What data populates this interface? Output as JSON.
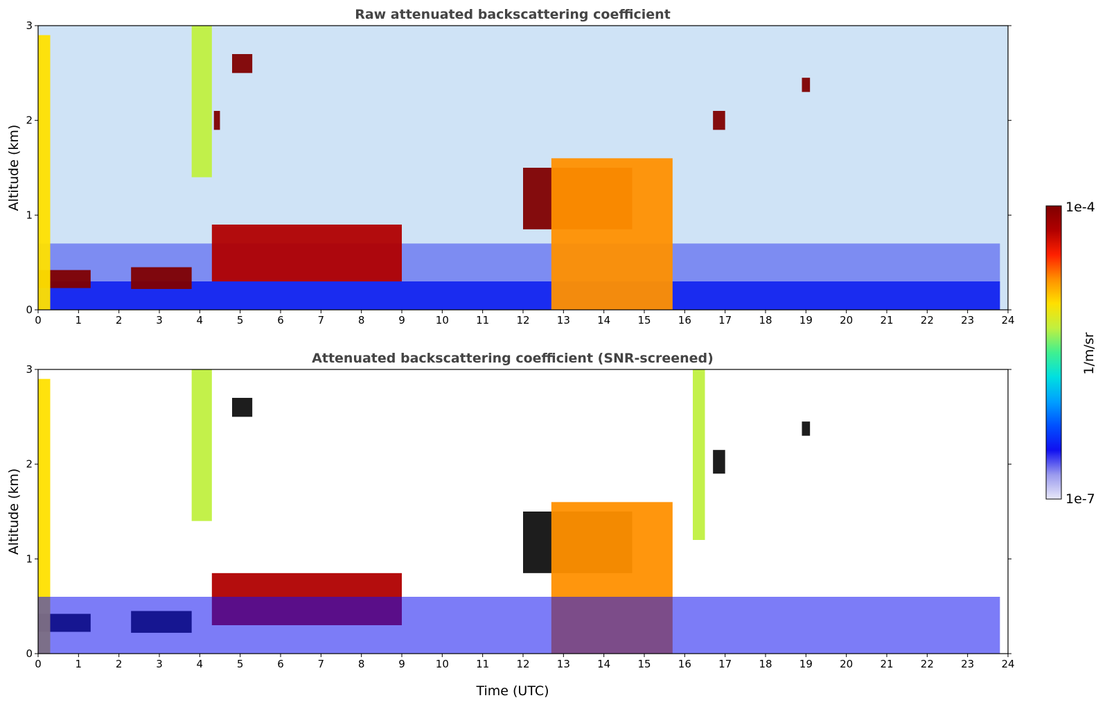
{
  "chart_data": [
    {
      "type": "heatmap",
      "title": "Raw attenuated backscattering coefficient",
      "xlabel": "",
      "ylabel": "Altitude (km)",
      "xlim": [
        0,
        24
      ],
      "ylim": [
        0,
        3
      ],
      "x_ticks": [
        "0",
        "1",
        "2",
        "3",
        "4",
        "5",
        "6",
        "7",
        "8",
        "9",
        "10",
        "11",
        "12",
        "13",
        "14",
        "15",
        "16",
        "17",
        "18",
        "19",
        "20",
        "21",
        "22",
        "23",
        "24"
      ],
      "y_ticks": [
        "0",
        "1",
        "2",
        "3"
      ],
      "grid": false,
      "features": [
        {
          "kind": "boundary_layer_aerosol",
          "t_start": 0.0,
          "t_end": 1.3,
          "alt_bottom": 0.23,
          "alt_top": 0.42,
          "level": 1.0
        },
        {
          "kind": "boundary_layer_aerosol",
          "t_start": 2.3,
          "t_end": 3.8,
          "alt_bottom": 0.22,
          "alt_top": 0.45,
          "level": 1.0
        },
        {
          "kind": "rising_aerosol_layer",
          "t_start": 4.3,
          "t_end": 9.0,
          "alt_bottom": 0.3,
          "alt_top": 0.9,
          "level": 0.95
        },
        {
          "kind": "cloud_base",
          "t_start": 12.0,
          "t_end": 14.7,
          "alt_bottom": 0.85,
          "alt_top": 1.5,
          "level": 1.0
        },
        {
          "kind": "convective_column",
          "t_start": 12.7,
          "t_end": 15.7,
          "alt_bottom": 0.0,
          "alt_top": 1.6,
          "level": 0.72
        },
        {
          "kind": "thin_cloud",
          "t_start": 16.7,
          "t_end": 17.0,
          "alt_bottom": 1.9,
          "alt_top": 2.1,
          "level": 1.0
        },
        {
          "kind": "thin_cloud",
          "t_start": 4.8,
          "t_end": 5.3,
          "alt_bottom": 2.5,
          "alt_top": 2.7,
          "level": 1.0
        },
        {
          "kind": "thin_cloud",
          "t_start": 4.35,
          "t_end": 4.5,
          "alt_bottom": 1.9,
          "alt_top": 2.1,
          "level": 1.0
        },
        {
          "kind": "thin_cloud",
          "t_start": 18.9,
          "t_end": 19.1,
          "alt_bottom": 2.3,
          "alt_top": 2.45,
          "level": 1.0
        },
        {
          "kind": "vertical_plume",
          "t_start": 0.0,
          "t_end": 0.3,
          "alt_bottom": 0.0,
          "alt_top": 2.9,
          "level": 0.65
        },
        {
          "kind": "vertical_plume",
          "t_start": 3.8,
          "t_end": 4.3,
          "alt_bottom": 1.4,
          "alt_top": 3.0,
          "level": 0.6
        }
      ]
    },
    {
      "type": "heatmap",
      "title": "Attenuated backscattering coefficient (SNR-screened)",
      "xlabel": "Time (UTC)",
      "ylabel": "Altitude (km)",
      "xlim": [
        0,
        24
      ],
      "ylim": [
        0,
        3
      ],
      "x_ticks": [
        "0",
        "1",
        "2",
        "3",
        "4",
        "5",
        "6",
        "7",
        "8",
        "9",
        "10",
        "11",
        "12",
        "13",
        "14",
        "15",
        "16",
        "17",
        "18",
        "19",
        "20",
        "21",
        "22",
        "23",
        "24"
      ],
      "y_ticks": [
        "0",
        "1",
        "2",
        "3"
      ],
      "grid": false,
      "features": [
        {
          "kind": "boundary_layer_aerosol",
          "t_start": 0.0,
          "t_end": 1.3,
          "alt_bottom": 0.23,
          "alt_top": 0.42,
          "level": 1.0
        },
        {
          "kind": "boundary_layer_aerosol",
          "t_start": 2.3,
          "t_end": 3.8,
          "alt_bottom": 0.22,
          "alt_top": 0.45,
          "level": 1.0
        },
        {
          "kind": "rising_aerosol_layer",
          "t_start": 4.3,
          "t_end": 9.0,
          "alt_bottom": 0.3,
          "alt_top": 0.85,
          "level": 0.95
        },
        {
          "kind": "cloud_base",
          "t_start": 12.0,
          "t_end": 14.7,
          "alt_bottom": 0.85,
          "alt_top": 1.5,
          "level": 1.0
        },
        {
          "kind": "convective_column",
          "t_start": 12.7,
          "t_end": 15.7,
          "alt_bottom": 0.0,
          "alt_top": 1.6,
          "level": 0.72
        },
        {
          "kind": "thin_cloud",
          "t_start": 16.7,
          "t_end": 17.0,
          "alt_bottom": 1.9,
          "alt_top": 2.15,
          "level": 1.0
        },
        {
          "kind": "thin_cloud",
          "t_start": 4.8,
          "t_end": 5.3,
          "alt_bottom": 2.5,
          "alt_top": 2.7,
          "level": 1.0
        },
        {
          "kind": "thin_cloud",
          "t_start": 18.9,
          "t_end": 19.1,
          "alt_bottom": 2.3,
          "alt_top": 2.45,
          "level": 1.0
        },
        {
          "kind": "vertical_plume",
          "t_start": 0.0,
          "t_end": 0.3,
          "alt_bottom": 0.0,
          "alt_top": 2.9,
          "level": 0.65
        },
        {
          "kind": "vertical_plume",
          "t_start": 3.8,
          "t_end": 4.3,
          "alt_bottom": 1.4,
          "alt_top": 3.0,
          "level": 0.6
        },
        {
          "kind": "screened_background",
          "t_start": 0.0,
          "t_end": 23.8,
          "alt_bottom": 0.0,
          "alt_top": 0.6,
          "level": 0.15
        },
        {
          "kind": "vertical_plume",
          "t_start": 16.2,
          "t_end": 16.5,
          "alt_bottom": 1.2,
          "alt_top": 3.0,
          "level": 0.55
        }
      ]
    }
  ],
  "colorbar": {
    "label": "1/m/sr",
    "max_label": "1e-4",
    "min_label": "1e-7",
    "colormap": [
      "#e8e8f8",
      "#9a9aee",
      "#1010f0",
      "#0050ff",
      "#00a0ff",
      "#00e0e0",
      "#40f090",
      "#c0f040",
      "#ffe000",
      "#ff9000",
      "#ff2000",
      "#b00000",
      "#800000"
    ]
  }
}
